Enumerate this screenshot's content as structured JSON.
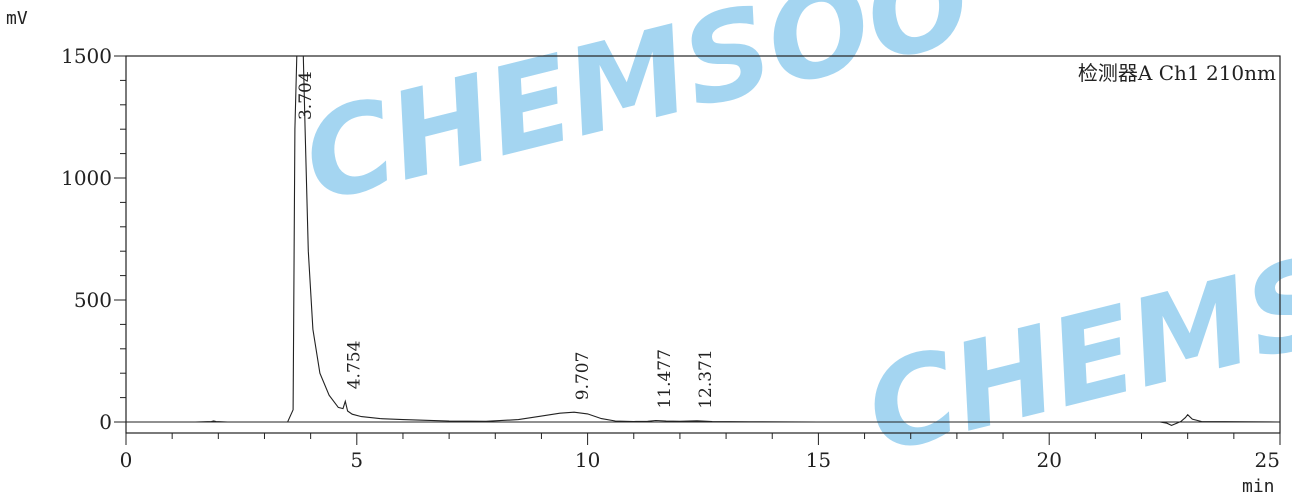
{
  "chart_data": {
    "type": "line",
    "y_unit": "mV",
    "x_unit": "min",
    "detector_label": "检测器A Ch1 210nm",
    "xlim": [
      0,
      25
    ],
    "ylim": [
      -100,
      1500
    ],
    "x_ticks": [
      0,
      5,
      10,
      15,
      20,
      25
    ],
    "y_ticks": [
      0,
      500,
      1000,
      1500
    ],
    "grid": false,
    "baseline_offset_mV": -42,
    "peaks": [
      {
        "label": "3.704",
        "rt": 3.704,
        "height_mV": 1500
      },
      {
        "label": "4.754",
        "rt": 4.754,
        "height_mV": 85
      },
      {
        "label": "9.707",
        "rt": 9.707,
        "height_mV": 40
      },
      {
        "label": "11.477",
        "rt": 11.477,
        "height_mV": 6
      },
      {
        "label": "12.371",
        "rt": 12.371,
        "height_mV": 5
      }
    ],
    "series": [
      {
        "x": [
          0,
          1.5,
          1.85,
          1.9,
          1.95,
          2.2,
          3.5,
          3.62,
          3.66,
          3.7,
          3.74,
          3.8,
          3.84,
          3.88,
          3.95,
          4.05,
          4.2,
          4.4,
          4.6,
          4.7,
          4.75,
          4.8,
          4.9,
          5.1,
          5.5,
          6.0,
          6.5,
          7.0,
          7.8,
          8.5,
          9.0,
          9.4,
          9.707,
          10.0,
          10.3,
          10.6,
          11.0,
          11.3,
          11.477,
          11.7,
          12.0,
          12.371,
          12.7,
          13.5,
          15,
          18,
          22.4,
          22.55,
          22.65,
          22.75,
          22.85,
          22.95,
          23.0,
          23.1,
          23.3,
          25
        ],
        "y": [
          0,
          0,
          2,
          4,
          2,
          0,
          0,
          50,
          1200,
          1500,
          1500,
          1500,
          1500,
          1200,
          700,
          380,
          200,
          110,
          60,
          55,
          85,
          45,
          32,
          22,
          14,
          10,
          7,
          4,
          3,
          10,
          24,
          36,
          40,
          33,
          14,
          4,
          2,
          3,
          6,
          4,
          3,
          5,
          2,
          1,
          0,
          0,
          0,
          -5,
          -14,
          -6,
          2,
          18,
          30,
          12,
          2,
          0
        ]
      }
    ],
    "watermark": "CHEMSOO"
  }
}
